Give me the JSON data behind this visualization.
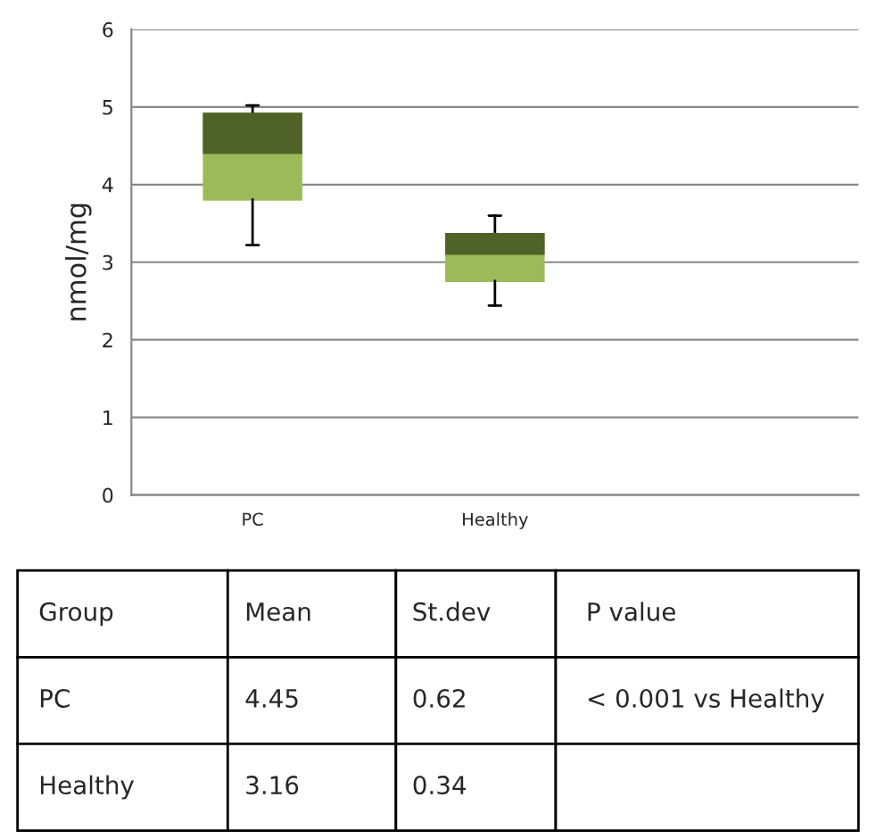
{
  "chart_data": {
    "type": "box",
    "ylabel": "nmol/mg",
    "categories": [
      "PC",
      "Healthy",
      null
    ],
    "boxes": [
      {
        "low": 3.22,
        "q1": 3.81,
        "median": 4.41,
        "q3": 4.91,
        "high": 5.02
      },
      {
        "low": 2.44,
        "q1": 2.76,
        "median": 3.11,
        "q3": 3.36,
        "high": 3.6
      },
      null
    ],
    "colors": [
      [
        "#9bbb59",
        "#4f6228"
      ],
      [
        "#9bbb59",
        "#4f6228"
      ],
      null
    ],
    "ylim": [
      0,
      6
    ],
    "yticks": [
      0,
      1,
      2,
      3,
      4,
      5,
      6
    ],
    "grid": "y",
    "annotations": [
      "Group",
      "Mean",
      "St.dev",
      "P value",
      "PC",
      "4.45",
      "0.62",
      "< 0.001 vs Healthy",
      "Healthy",
      "3.16",
      "0.34"
    ]
  }
}
